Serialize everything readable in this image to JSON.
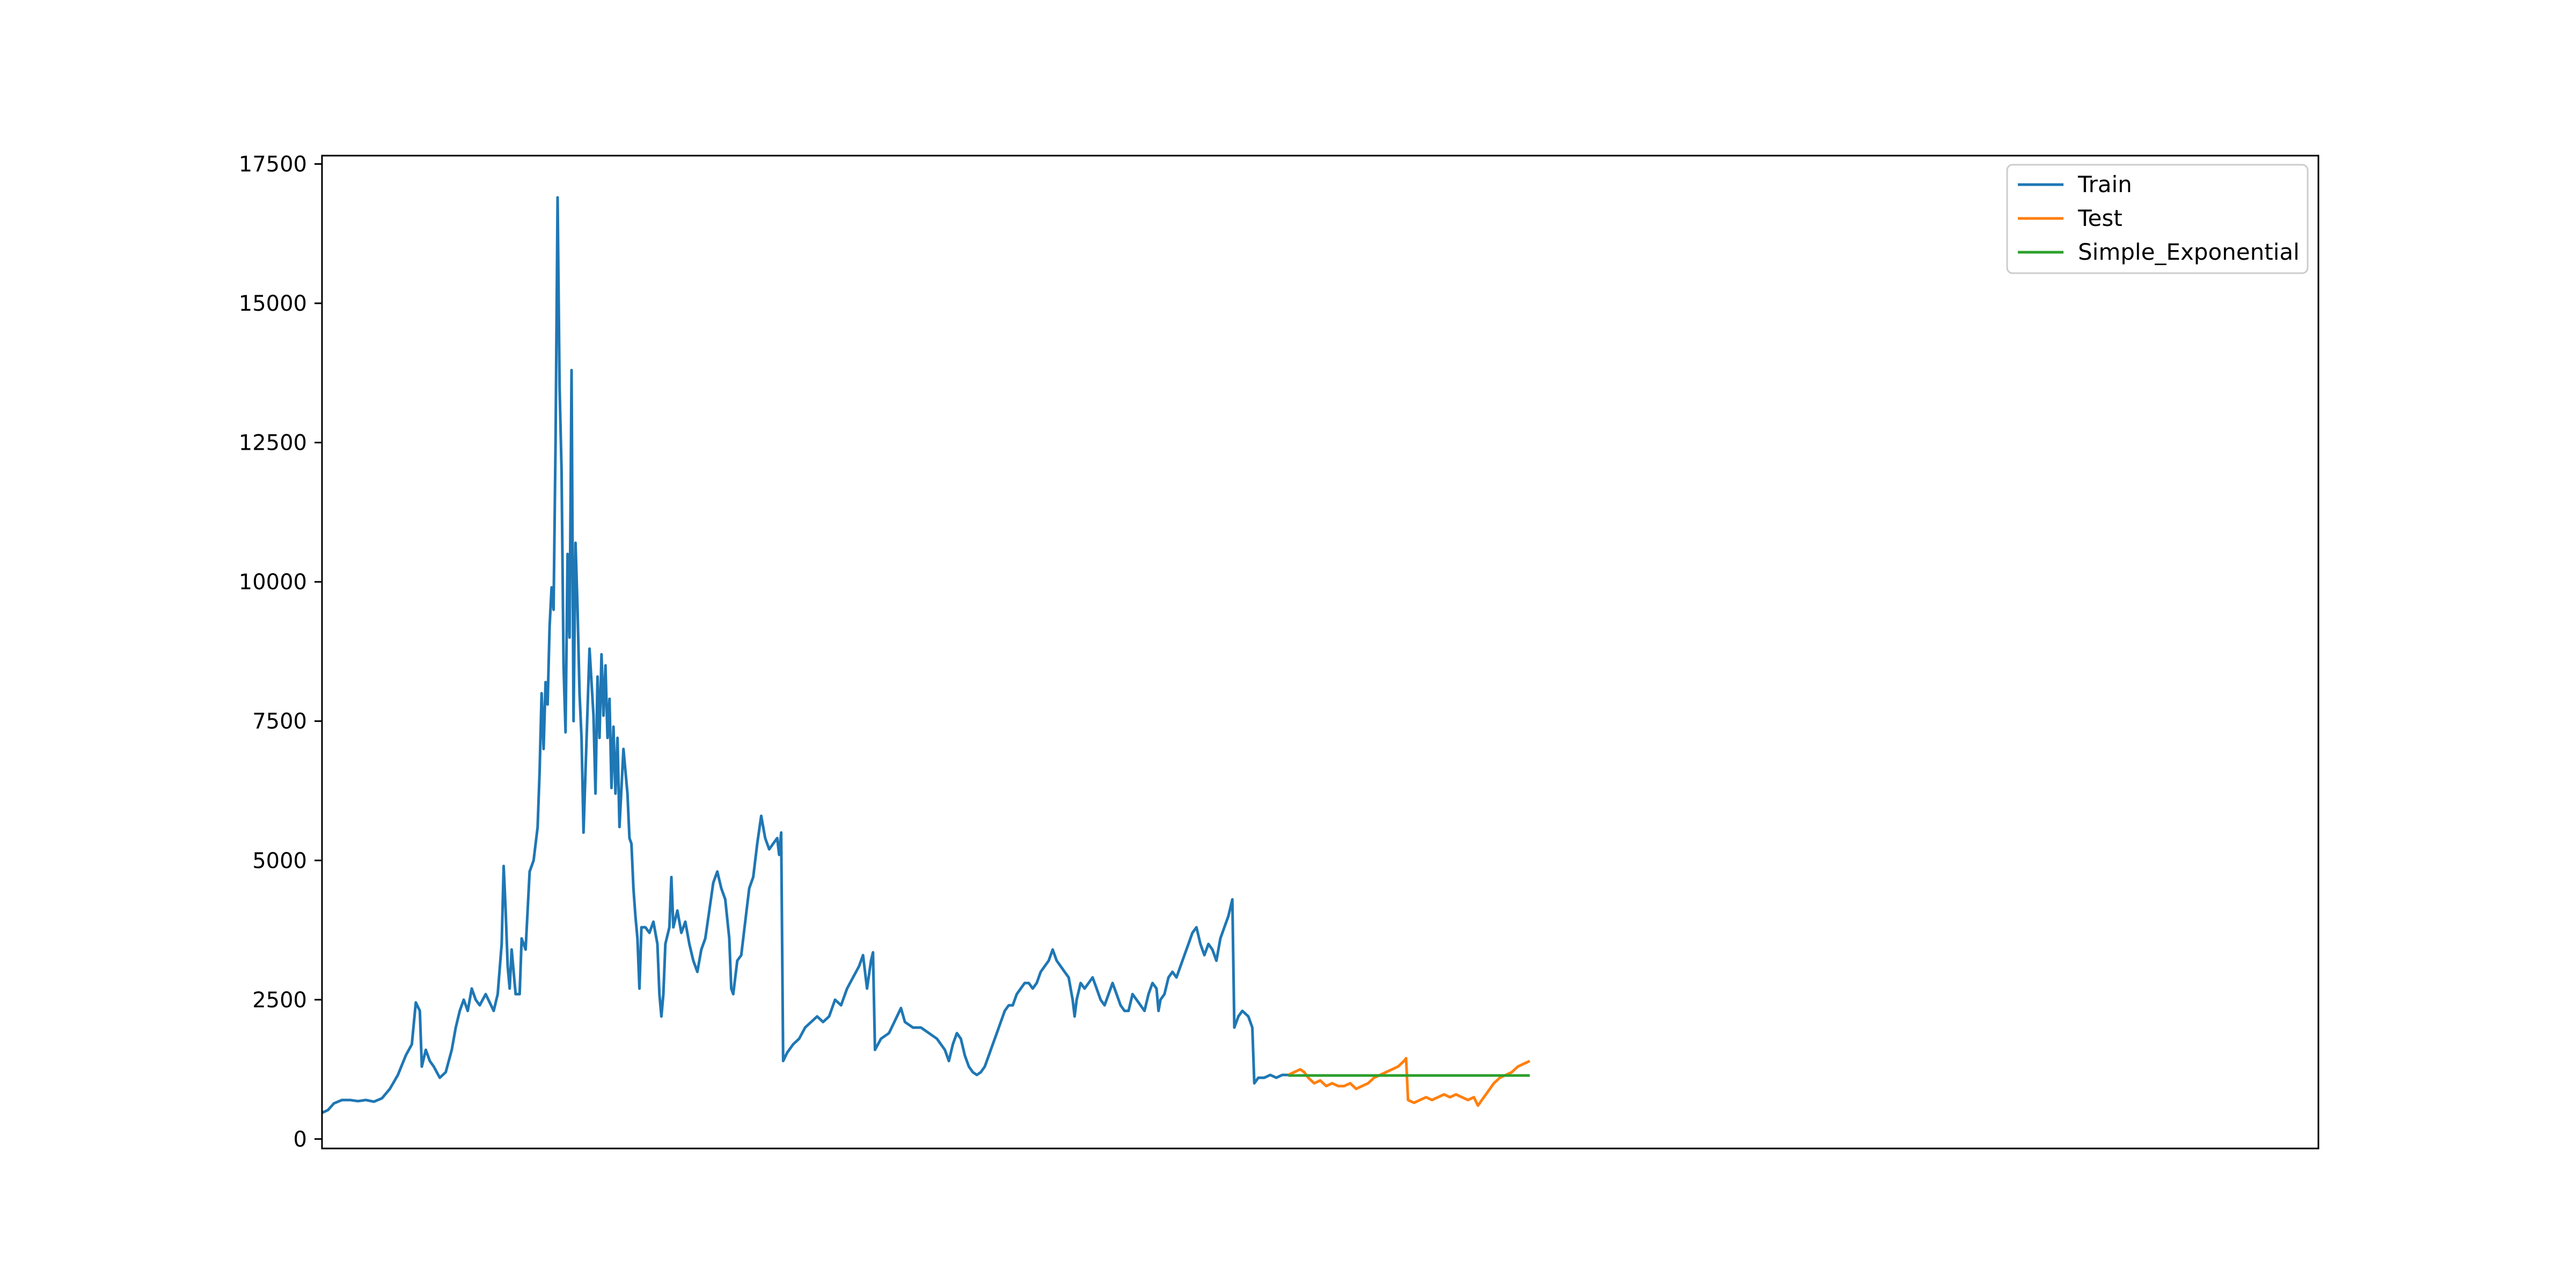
{
  "colors": {
    "train": "#1f77b4",
    "test": "#ff7f0e",
    "simple_exponential": "#2ca02c",
    "axes": "#000000",
    "legend_border": "#cccccc"
  },
  "chart_data": {
    "type": "line",
    "title": "",
    "xlabel": "",
    "ylabel": "",
    "x_tick_labels_shown": false,
    "x_index_range": [
      0,
      1000
    ],
    "ylim": [
      -170,
      17650
    ],
    "yticks": [
      0,
      2500,
      5000,
      7500,
      10000,
      12500,
      15000,
      17500
    ],
    "ytick_labels": [
      "0",
      "2500",
      "5000",
      "7500",
      "10000",
      "12500",
      "15000",
      "17500"
    ],
    "grid": false,
    "legend": {
      "placement": "top-right",
      "entries": [
        "Train",
        "Test",
        "Simple_Exponential"
      ]
    },
    "series": [
      {
        "name": "Train",
        "color_key": "train",
        "points": [
          [
            0,
            470
          ],
          [
            3,
            520
          ],
          [
            6,
            640
          ],
          [
            10,
            700
          ],
          [
            14,
            700
          ],
          [
            18,
            680
          ],
          [
            22,
            700
          ],
          [
            26,
            670
          ],
          [
            30,
            730
          ],
          [
            34,
            900
          ],
          [
            38,
            1150
          ],
          [
            42,
            1500
          ],
          [
            45,
            1700
          ],
          [
            47,
            2450
          ],
          [
            49,
            2300
          ],
          [
            50,
            1300
          ],
          [
            52,
            1600
          ],
          [
            54,
            1400
          ],
          [
            56,
            1300
          ],
          [
            59,
            1100
          ],
          [
            62,
            1200
          ],
          [
            65,
            1600
          ],
          [
            67,
            2000
          ],
          [
            69,
            2300
          ],
          [
            71,
            2500
          ],
          [
            73,
            2300
          ],
          [
            75,
            2700
          ],
          [
            77,
            2500
          ],
          [
            79,
            2400
          ],
          [
            82,
            2600
          ],
          [
            84,
            2450
          ],
          [
            86,
            2300
          ],
          [
            88,
            2600
          ],
          [
            90,
            3500
          ],
          [
            91,
            4900
          ],
          [
            92,
            4100
          ],
          [
            93,
            3100
          ],
          [
            94,
            2700
          ],
          [
            95,
            3400
          ],
          [
            97,
            2600
          ],
          [
            99,
            2600
          ],
          [
            100,
            3600
          ],
          [
            102,
            3400
          ],
          [
            104,
            4800
          ],
          [
            106,
            5000
          ],
          [
            108,
            5600
          ],
          [
            109,
            6600
          ],
          [
            110,
            8000
          ],
          [
            111,
            7000
          ],
          [
            112,
            8200
          ],
          [
            113,
            7800
          ],
          [
            114,
            9200
          ],
          [
            115,
            9900
          ],
          [
            116,
            9500
          ],
          [
            117,
            12500
          ],
          [
            118,
            16900
          ],
          [
            119,
            13500
          ],
          [
            120,
            12000
          ],
          [
            121,
            8500
          ],
          [
            122,
            7300
          ],
          [
            123,
            10500
          ],
          [
            124,
            9000
          ],
          [
            125,
            13800
          ],
          [
            126,
            7500
          ],
          [
            127,
            10700
          ],
          [
            128,
            9500
          ],
          [
            129,
            8000
          ],
          [
            130,
            7200
          ],
          [
            131,
            5500
          ],
          [
            132,
            6600
          ],
          [
            134,
            8800
          ],
          [
            136,
            7600
          ],
          [
            137,
            6200
          ],
          [
            138,
            8300
          ],
          [
            139,
            7200
          ],
          [
            140,
            8700
          ],
          [
            141,
            7600
          ],
          [
            142,
            8500
          ],
          [
            143,
            7200
          ],
          [
            144,
            7900
          ],
          [
            145,
            6300
          ],
          [
            146,
            7400
          ],
          [
            147,
            6200
          ],
          [
            148,
            7200
          ],
          [
            149,
            5600
          ],
          [
            151,
            7000
          ],
          [
            153,
            6200
          ],
          [
            154,
            5400
          ],
          [
            155,
            5300
          ],
          [
            156,
            4500
          ],
          [
            157,
            4000
          ],
          [
            158,
            3600
          ],
          [
            159,
            2700
          ],
          [
            160,
            3800
          ],
          [
            162,
            3800
          ],
          [
            164,
            3700
          ],
          [
            166,
            3900
          ],
          [
            168,
            3500
          ],
          [
            169,
            2600
          ],
          [
            170,
            2200
          ],
          [
            171,
            2600
          ],
          [
            172,
            3500
          ],
          [
            174,
            3800
          ],
          [
            175,
            4700
          ],
          [
            176,
            3800
          ],
          [
            178,
            4100
          ],
          [
            180,
            3700
          ],
          [
            182,
            3900
          ],
          [
            184,
            3500
          ],
          [
            186,
            3200
          ],
          [
            188,
            3000
          ],
          [
            190,
            3400
          ],
          [
            192,
            3600
          ],
          [
            194,
            4100
          ],
          [
            196,
            4600
          ],
          [
            198,
            4800
          ],
          [
            200,
            4500
          ],
          [
            202,
            4300
          ],
          [
            204,
            3600
          ],
          [
            205,
            2700
          ],
          [
            206,
            2600
          ],
          [
            208,
            3200
          ],
          [
            210,
            3300
          ],
          [
            212,
            3900
          ],
          [
            214,
            4500
          ],
          [
            216,
            4700
          ],
          [
            218,
            5300
          ],
          [
            220,
            5800
          ],
          [
            222,
            5400
          ],
          [
            224,
            5200
          ],
          [
            226,
            5300
          ],
          [
            228,
            5400
          ],
          [
            229,
            5100
          ],
          [
            230,
            5500
          ],
          [
            231,
            1400
          ],
          [
            233,
            1550
          ],
          [
            236,
            1700
          ],
          [
            239,
            1800
          ],
          [
            242,
            2000
          ],
          [
            245,
            2100
          ],
          [
            248,
            2200
          ],
          [
            251,
            2100
          ],
          [
            254,
            2200
          ],
          [
            257,
            2500
          ],
          [
            260,
            2400
          ],
          [
            263,
            2700
          ],
          [
            266,
            2900
          ],
          [
            269,
            3100
          ],
          [
            271,
            3300
          ],
          [
            273,
            2700
          ],
          [
            275,
            3200
          ],
          [
            276,
            3350
          ],
          [
            277,
            1600
          ],
          [
            280,
            1800
          ],
          [
            284,
            1900
          ],
          [
            288,
            2200
          ],
          [
            290,
            2350
          ],
          [
            292,
            2100
          ],
          [
            296,
            2000
          ],
          [
            300,
            2000
          ],
          [
            304,
            1900
          ],
          [
            308,
            1800
          ],
          [
            312,
            1600
          ],
          [
            314,
            1400
          ],
          [
            316,
            1700
          ],
          [
            318,
            1900
          ],
          [
            320,
            1800
          ],
          [
            322,
            1500
          ],
          [
            324,
            1300
          ],
          [
            326,
            1200
          ],
          [
            328,
            1150
          ],
          [
            330,
            1200
          ],
          [
            332,
            1300
          ],
          [
            334,
            1500
          ],
          [
            336,
            1700
          ],
          [
            338,
            1900
          ],
          [
            340,
            2100
          ],
          [
            342,
            2300
          ],
          [
            344,
            2400
          ],
          [
            346,
            2400
          ],
          [
            348,
            2600
          ],
          [
            350,
            2700
          ],
          [
            352,
            2800
          ],
          [
            354,
            2800
          ],
          [
            356,
            2700
          ],
          [
            358,
            2800
          ],
          [
            360,
            3000
          ],
          [
            362,
            3100
          ],
          [
            364,
            3200
          ],
          [
            366,
            3400
          ],
          [
            368,
            3200
          ],
          [
            370,
            3100
          ],
          [
            372,
            3000
          ],
          [
            374,
            2900
          ],
          [
            376,
            2500
          ],
          [
            377,
            2200
          ],
          [
            378,
            2500
          ],
          [
            380,
            2800
          ],
          [
            382,
            2700
          ],
          [
            384,
            2800
          ],
          [
            386,
            2900
          ],
          [
            388,
            2700
          ],
          [
            390,
            2500
          ],
          [
            392,
            2400
          ],
          [
            394,
            2600
          ],
          [
            396,
            2800
          ],
          [
            398,
            2600
          ],
          [
            400,
            2400
          ],
          [
            402,
            2300
          ],
          [
            404,
            2300
          ],
          [
            406,
            2600
          ],
          [
            408,
            2500
          ],
          [
            410,
            2400
          ],
          [
            412,
            2300
          ],
          [
            414,
            2600
          ],
          [
            416,
            2800
          ],
          [
            418,
            2700
          ],
          [
            419,
            2300
          ],
          [
            420,
            2500
          ],
          [
            422,
            2600
          ],
          [
            424,
            2900
          ],
          [
            426,
            3000
          ],
          [
            428,
            2900
          ],
          [
            430,
            3100
          ],
          [
            432,
            3300
          ],
          [
            434,
            3500
          ],
          [
            436,
            3700
          ],
          [
            438,
            3800
          ],
          [
            440,
            3500
          ],
          [
            442,
            3300
          ],
          [
            444,
            3500
          ],
          [
            446,
            3400
          ],
          [
            448,
            3200
          ],
          [
            450,
            3600
          ],
          [
            452,
            3800
          ],
          [
            454,
            4000
          ],
          [
            456,
            4300
          ],
          [
            457,
            2000
          ],
          [
            459,
            2200
          ],
          [
            461,
            2300
          ],
          [
            464,
            2200
          ],
          [
            466,
            2000
          ],
          [
            467,
            1000
          ],
          [
            469,
            1100
          ],
          [
            472,
            1100
          ],
          [
            475,
            1150
          ],
          [
            478,
            1100
          ],
          [
            481,
            1150
          ],
          [
            484,
            1150
          ]
        ]
      },
      {
        "name": "Test",
        "color_key": "test",
        "points": [
          [
            484,
            1150
          ],
          [
            487,
            1200
          ],
          [
            490,
            1250
          ],
          [
            492,
            1200
          ],
          [
            494,
            1100
          ],
          [
            497,
            1000
          ],
          [
            500,
            1050
          ],
          [
            503,
            950
          ],
          [
            506,
            1000
          ],
          [
            509,
            950
          ],
          [
            512,
            950
          ],
          [
            515,
            1000
          ],
          [
            518,
            900
          ],
          [
            521,
            950
          ],
          [
            524,
            1000
          ],
          [
            527,
            1100
          ],
          [
            530,
            1150
          ],
          [
            533,
            1200
          ],
          [
            536,
            1250
          ],
          [
            539,
            1300
          ],
          [
            542,
            1400
          ],
          [
            543,
            1450
          ],
          [
            544,
            700
          ],
          [
            547,
            650
          ],
          [
            550,
            700
          ],
          [
            553,
            750
          ],
          [
            556,
            700
          ],
          [
            559,
            750
          ],
          [
            562,
            800
          ],
          [
            565,
            750
          ],
          [
            568,
            800
          ],
          [
            571,
            750
          ],
          [
            574,
            700
          ],
          [
            577,
            750
          ],
          [
            579,
            600
          ],
          [
            581,
            700
          ],
          [
            584,
            850
          ],
          [
            587,
            1000
          ],
          [
            590,
            1100
          ],
          [
            593,
            1150
          ],
          [
            596,
            1200
          ],
          [
            599,
            1300
          ],
          [
            602,
            1350
          ],
          [
            605,
            1400
          ]
        ]
      },
      {
        "name": "Simple_Exponential",
        "color_key": "simple_exponential",
        "points": [
          [
            484,
            1140
          ],
          [
            605,
            1140
          ]
        ]
      }
    ]
  }
}
